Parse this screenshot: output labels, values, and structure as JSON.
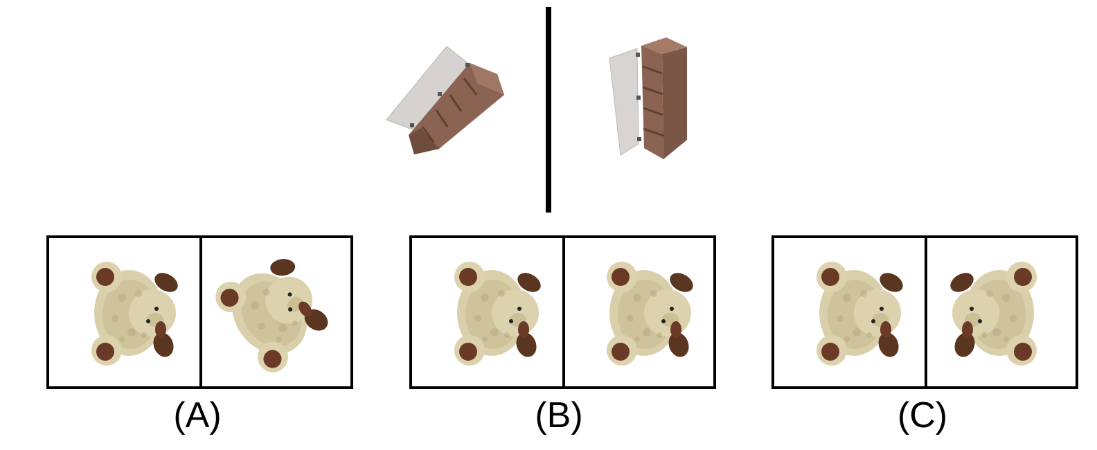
{
  "reference": {
    "left_object": "bookshelf-cabinet-rotated",
    "right_object": "bookshelf-cabinet-upright"
  },
  "options": [
    {
      "label": "(A)",
      "left_pose": "teddy-bear-sideways",
      "right_pose": "teddy-bear-tilted"
    },
    {
      "label": "(B)",
      "left_pose": "teddy-bear-sideways",
      "right_pose": "teddy-bear-sideways"
    },
    {
      "label": "(C)",
      "left_pose": "teddy-bear-sideways",
      "right_pose": "teddy-bear-sideways-mirrored"
    }
  ],
  "colors": {
    "wood": "#8a6352",
    "wood_dark": "#6e4c3e",
    "door": "#d8d4d2",
    "bear_fur": "#d9cfaa",
    "bear_shade": "#b8ab82",
    "bear_pad": "#6b3a26",
    "bear_ear": "#5a351f"
  }
}
